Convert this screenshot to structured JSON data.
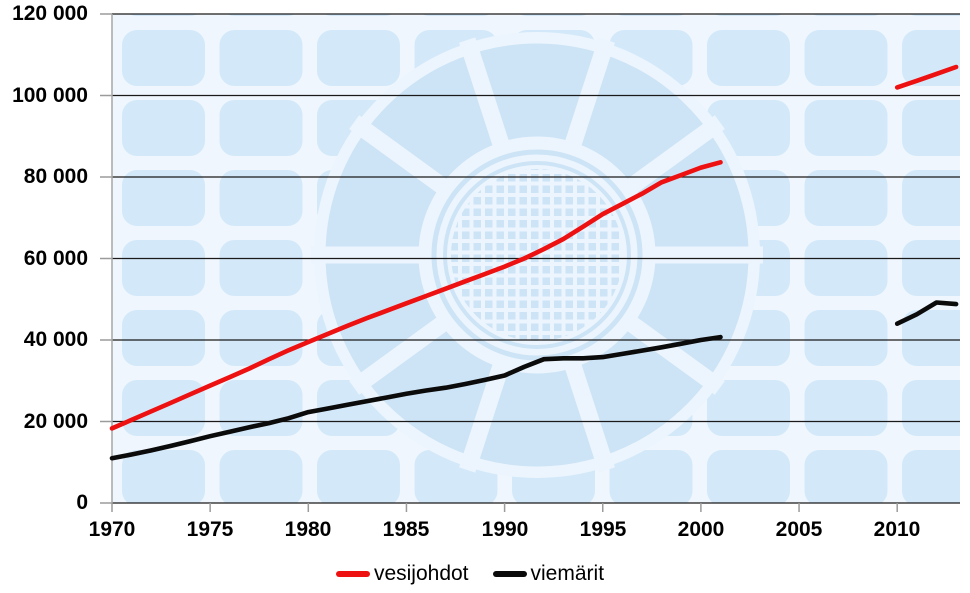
{
  "chart_data": {
    "type": "line",
    "title": "",
    "xlabel": "",
    "ylabel": "",
    "xlim": [
      1970,
      2013.2
    ],
    "ylim": [
      0,
      120000
    ],
    "grid": "horizontal-black-lines",
    "legend_position": "bottom-center",
    "x_tick_labels": [
      "1970",
      "1975",
      "1980",
      "1985",
      "1990",
      "1995",
      "2000",
      "2005",
      "2010"
    ],
    "y_tick_labels": [
      "120 000",
      "100 000",
      "80 000",
      "60 000",
      "40 000",
      "20 000",
      "0"
    ],
    "note_visual": "data gap between 2001 and 2010; light-blue rounded-tile watermark with circular logo behind plot",
    "series": [
      {
        "name": "vesijohdot",
        "color": "#ee1111",
        "segments": [
          {
            "years": [
              1970,
              1971,
              1972,
              1973,
              1974,
              1975,
              1976,
              1977,
              1978,
              1979,
              1980,
              1981,
              1982,
              1983,
              1984,
              1985,
              1986,
              1987,
              1988,
              1989,
              1990,
              1991,
              1992,
              1993,
              1994,
              1995,
              1996,
              1997,
              1998,
              1999,
              2000,
              2001
            ],
            "values": [
              18300,
              20400,
              22500,
              24600,
              26700,
              28800,
              30900,
              33000,
              35300,
              37500,
              39500,
              41500,
              43500,
              45400,
              47200,
              49000,
              50800,
              52600,
              54400,
              56200,
              58000,
              60000,
              62300,
              64800,
              67800,
              70900,
              73400,
              75900,
              78700,
              80500,
              82300,
              83600
            ]
          },
          {
            "years": [
              2010,
              2011,
              2012,
              2013
            ],
            "values": [
              102000,
              103600,
              105300,
              107000
            ]
          }
        ]
      },
      {
        "name": "viemärit",
        "color": "#0b0b0b",
        "segments": [
          {
            "years": [
              1970,
              1971,
              1972,
              1973,
              1974,
              1975,
              1976,
              1977,
              1978,
              1979,
              1980,
              1981,
              1982,
              1983,
              1984,
              1985,
              1986,
              1987,
              1988,
              1989,
              1990,
              1991,
              1992,
              1993,
              1994,
              1995,
              1996,
              1997,
              1998,
              1999,
              2000,
              2001
            ],
            "values": [
              11000,
              11900,
              12900,
              14000,
              15200,
              16400,
              17500,
              18600,
              19600,
              20800,
              22300,
              23200,
              24100,
              25000,
              25900,
              26800,
              27600,
              28300,
              29200,
              30200,
              31300,
              33400,
              35300,
              35500,
              35500,
              35800,
              36600,
              37400,
              38200,
              39100,
              40000,
              40700
            ]
          },
          {
            "years": [
              2010,
              2011,
              2012,
              2013
            ],
            "values": [
              44000,
              46300,
              49200,
              48800
            ]
          }
        ]
      }
    ]
  }
}
